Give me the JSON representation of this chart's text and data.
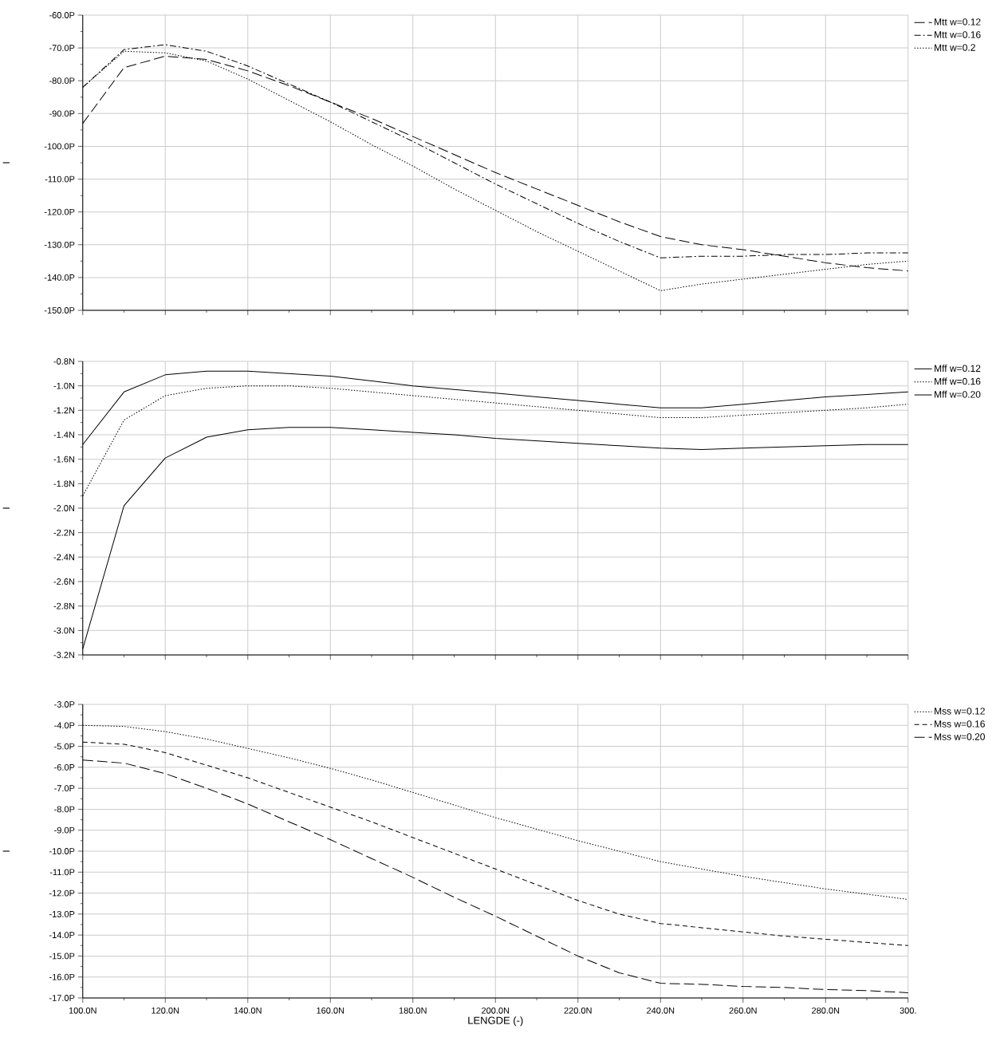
{
  "chart_data": [
    {
      "type": "line",
      "ylabel": "I",
      "x": [
        100,
        110,
        120,
        130,
        140,
        150,
        160,
        170,
        180,
        190,
        200,
        210,
        220,
        230,
        240,
        250,
        260,
        270,
        280,
        290,
        300
      ],
      "xlim": [
        100,
        300
      ],
      "xticks": [
        {
          "value": 100,
          "label": null
        },
        {
          "value": 120,
          "label": null
        },
        {
          "value": 140,
          "label": null
        },
        {
          "value": 160,
          "label": null
        },
        {
          "value": 180,
          "label": null
        },
        {
          "value": 200,
          "label": null
        },
        {
          "value": 220,
          "label": null
        },
        {
          "value": 240,
          "label": null
        },
        {
          "value": 260,
          "label": null
        },
        {
          "value": 280,
          "label": null
        },
        {
          "value": 300,
          "label": null
        }
      ],
      "ylim": [
        -150,
        -60
      ],
      "yticks": [
        {
          "value": -150,
          "label": "-150.0P"
        },
        {
          "value": -140,
          "label": "-140.0P"
        },
        {
          "value": -130,
          "label": "-130.0P"
        },
        {
          "value": -120,
          "label": "-120.0P"
        },
        {
          "value": -110,
          "label": "-110.0P"
        },
        {
          "value": -100,
          "label": "-100.0P"
        },
        {
          "value": -90,
          "label": "-90.0P"
        },
        {
          "value": -80,
          "label": "-80.0P"
        },
        {
          "value": -70,
          "label": "-70.0P"
        },
        {
          "value": -60,
          "label": "-60.0P"
        }
      ],
      "tick_labels": "y",
      "grid": true,
      "legend": "top right",
      "series": [
        {
          "name": "Mtt w=0.12",
          "color": "#000000",
          "line_style": "longdashed",
          "values": [
            -93,
            -76,
            -72.5,
            -73.5,
            -77,
            -81.5,
            -86.5,
            -91.5,
            -97,
            -102.5,
            -108,
            -113,
            -118,
            -123,
            -127.5,
            -130,
            -131.5,
            -133.5,
            -135.5,
            -137,
            -138
          ]
        },
        {
          "name": "Mtt w=0.16",
          "color": "#000000",
          "line_style": "dashdot",
          "values": [
            -82,
            -70.5,
            -69,
            -71,
            -75.5,
            -81,
            -86.5,
            -92.5,
            -98.5,
            -105,
            -111.5,
            -117.5,
            -123.5,
            -129,
            -134,
            -133.5,
            -133.5,
            -133,
            -133,
            -132.5,
            -132.5
          ]
        },
        {
          "name": "Mtt w=0.2",
          "color": "#000000",
          "line_style": "dotted",
          "values": [
            -82,
            -71,
            -71.5,
            -74,
            -79.5,
            -86,
            -92.5,
            -99.5,
            -106,
            -113,
            -119.5,
            -126,
            -132,
            -138,
            -144,
            -142,
            -140.5,
            -139,
            -137.5,
            -136,
            -135
          ]
        }
      ]
    },
    {
      "type": "line",
      "ylabel": "I",
      "x": [
        100,
        110,
        120,
        130,
        140,
        150,
        160,
        170,
        180,
        190,
        200,
        210,
        220,
        230,
        240,
        250,
        260,
        270,
        280,
        290,
        300
      ],
      "xlim": [
        100,
        300
      ],
      "xticks": [
        {
          "value": 100,
          "label": null
        },
        {
          "value": 120,
          "label": null
        },
        {
          "value": 140,
          "label": null
        },
        {
          "value": 160,
          "label": null
        },
        {
          "value": 180,
          "label": null
        },
        {
          "value": 200,
          "label": null
        },
        {
          "value": 220,
          "label": null
        },
        {
          "value": 240,
          "label": null
        },
        {
          "value": 260,
          "label": null
        },
        {
          "value": 280,
          "label": null
        },
        {
          "value": 300,
          "label": null
        }
      ],
      "ylim": [
        -3.2,
        -0.8
      ],
      "yticks": [
        {
          "value": -3.2,
          "label": "-3.2N"
        },
        {
          "value": -3.0,
          "label": "-3.0N"
        },
        {
          "value": -2.8,
          "label": "-2.8N"
        },
        {
          "value": -2.6,
          "label": "-2.6N"
        },
        {
          "value": -2.4,
          "label": "-2.4N"
        },
        {
          "value": -2.2,
          "label": "-2.2N"
        },
        {
          "value": -2.0,
          "label": "-2.0N"
        },
        {
          "value": -1.8,
          "label": "-1.8N"
        },
        {
          "value": -1.6,
          "label": "-1.6N"
        },
        {
          "value": -1.4,
          "label": "-1.4N"
        },
        {
          "value": -1.2,
          "label": "-1.2N"
        },
        {
          "value": -1.0,
          "label": "-1.0N"
        },
        {
          "value": -0.8,
          "label": "-0.8N"
        }
      ],
      "tick_labels": "y",
      "grid": true,
      "legend": "top right",
      "series": [
        {
          "name": "Mff w=0.12",
          "color": "#000000",
          "line_style": "solid",
          "values": [
            -1.48,
            -1.05,
            -0.91,
            -0.88,
            -0.88,
            -0.9,
            -0.92,
            -0.96,
            -1.0,
            -1.03,
            -1.06,
            -1.09,
            -1.12,
            -1.15,
            -1.18,
            -1.18,
            -1.15,
            -1.12,
            -1.09,
            -1.07,
            -1.05
          ]
        },
        {
          "name": "Mff w=0.16",
          "color": "#000000",
          "line_style": "dotted",
          "values": [
            -1.9,
            -1.28,
            -1.08,
            -1.02,
            -1.0,
            -1.0,
            -1.02,
            -1.05,
            -1.08,
            -1.11,
            -1.14,
            -1.17,
            -1.2,
            -1.23,
            -1.26,
            -1.26,
            -1.24,
            -1.22,
            -1.2,
            -1.18,
            -1.15
          ]
        },
        {
          "name": "Mff w=0.20",
          "color": "#000000",
          "line_style": "solid",
          "values": [
            -3.15,
            -1.98,
            -1.59,
            -1.42,
            -1.36,
            -1.34,
            -1.34,
            -1.36,
            -1.38,
            -1.4,
            -1.43,
            -1.45,
            -1.47,
            -1.49,
            -1.51,
            -1.52,
            -1.51,
            -1.5,
            -1.49,
            -1.48,
            -1.48
          ]
        }
      ]
    },
    {
      "type": "line",
      "ylabel": "I",
      "xlabel": "LENGDE (-)",
      "x": [
        100,
        110,
        120,
        130,
        140,
        150,
        160,
        170,
        180,
        190,
        200,
        210,
        220,
        230,
        240,
        250,
        260,
        270,
        280,
        290,
        300
      ],
      "xlim": [
        100,
        300
      ],
      "xticks": [
        {
          "value": 100,
          "label": "100.0N"
        },
        {
          "value": 120,
          "label": "120.0N"
        },
        {
          "value": 140,
          "label": "140.0N"
        },
        {
          "value": 160,
          "label": "160.0N"
        },
        {
          "value": 180,
          "label": "180.0N"
        },
        {
          "value": 200,
          "label": "200.0N"
        },
        {
          "value": 220,
          "label": "220.0N"
        },
        {
          "value": 240,
          "label": "240.0N"
        },
        {
          "value": 260,
          "label": "260.0N"
        },
        {
          "value": 280,
          "label": "280.0N"
        },
        {
          "value": 300,
          "label": "300."
        }
      ],
      "ylim": [
        -17,
        -3
      ],
      "yticks": [
        {
          "value": -17,
          "label": "-17.0P"
        },
        {
          "value": -16,
          "label": "-16.0P"
        },
        {
          "value": -15,
          "label": "-15.0P"
        },
        {
          "value": -14,
          "label": "-14.0P"
        },
        {
          "value": -13,
          "label": "-13.0P"
        },
        {
          "value": -12,
          "label": "-12.0P"
        },
        {
          "value": -11,
          "label": "-11.0P"
        },
        {
          "value": -10,
          "label": "-10.0P"
        },
        {
          "value": -9,
          "label": "-9.0P"
        },
        {
          "value": -8,
          "label": "-8.0P"
        },
        {
          "value": -7,
          "label": "-7.0P"
        },
        {
          "value": -6,
          "label": "-6.0P"
        },
        {
          "value": -5,
          "label": "-5.0P"
        },
        {
          "value": -4,
          "label": "-4.0P"
        },
        {
          "value": -3,
          "label": "-3.0P"
        }
      ],
      "grid": true,
      "legend": "top right",
      "series": [
        {
          "name": "Mss w=0.12",
          "color": "#000000",
          "line_style": "dotted",
          "values": [
            -4.0,
            -4.05,
            -4.3,
            -4.65,
            -5.1,
            -5.55,
            -6.05,
            -6.6,
            -7.2,
            -7.8,
            -8.4,
            -8.95,
            -9.5,
            -10.0,
            -10.5,
            -10.85,
            -11.2,
            -11.5,
            -11.8,
            -12.05,
            -12.3
          ]
        },
        {
          "name": "Mss w=0.16",
          "color": "#000000",
          "line_style": "dashed",
          "values": [
            -4.8,
            -4.9,
            -5.3,
            -5.9,
            -6.5,
            -7.2,
            -7.9,
            -8.6,
            -9.35,
            -10.1,
            -10.85,
            -11.6,
            -12.35,
            -13.0,
            -13.45,
            -13.65,
            -13.85,
            -14.05,
            -14.2,
            -14.35,
            -14.5
          ]
        },
        {
          "name": "Mss w=0.20",
          "color": "#000000",
          "line_style": "longdashed",
          "values": [
            -5.65,
            -5.8,
            -6.3,
            -7.0,
            -7.75,
            -8.6,
            -9.45,
            -10.35,
            -11.25,
            -12.2,
            -13.1,
            -14.05,
            -15.0,
            -15.8,
            -16.3,
            -16.35,
            -16.45,
            -16.5,
            -16.6,
            -16.65,
            -16.75
          ]
        }
      ]
    }
  ]
}
